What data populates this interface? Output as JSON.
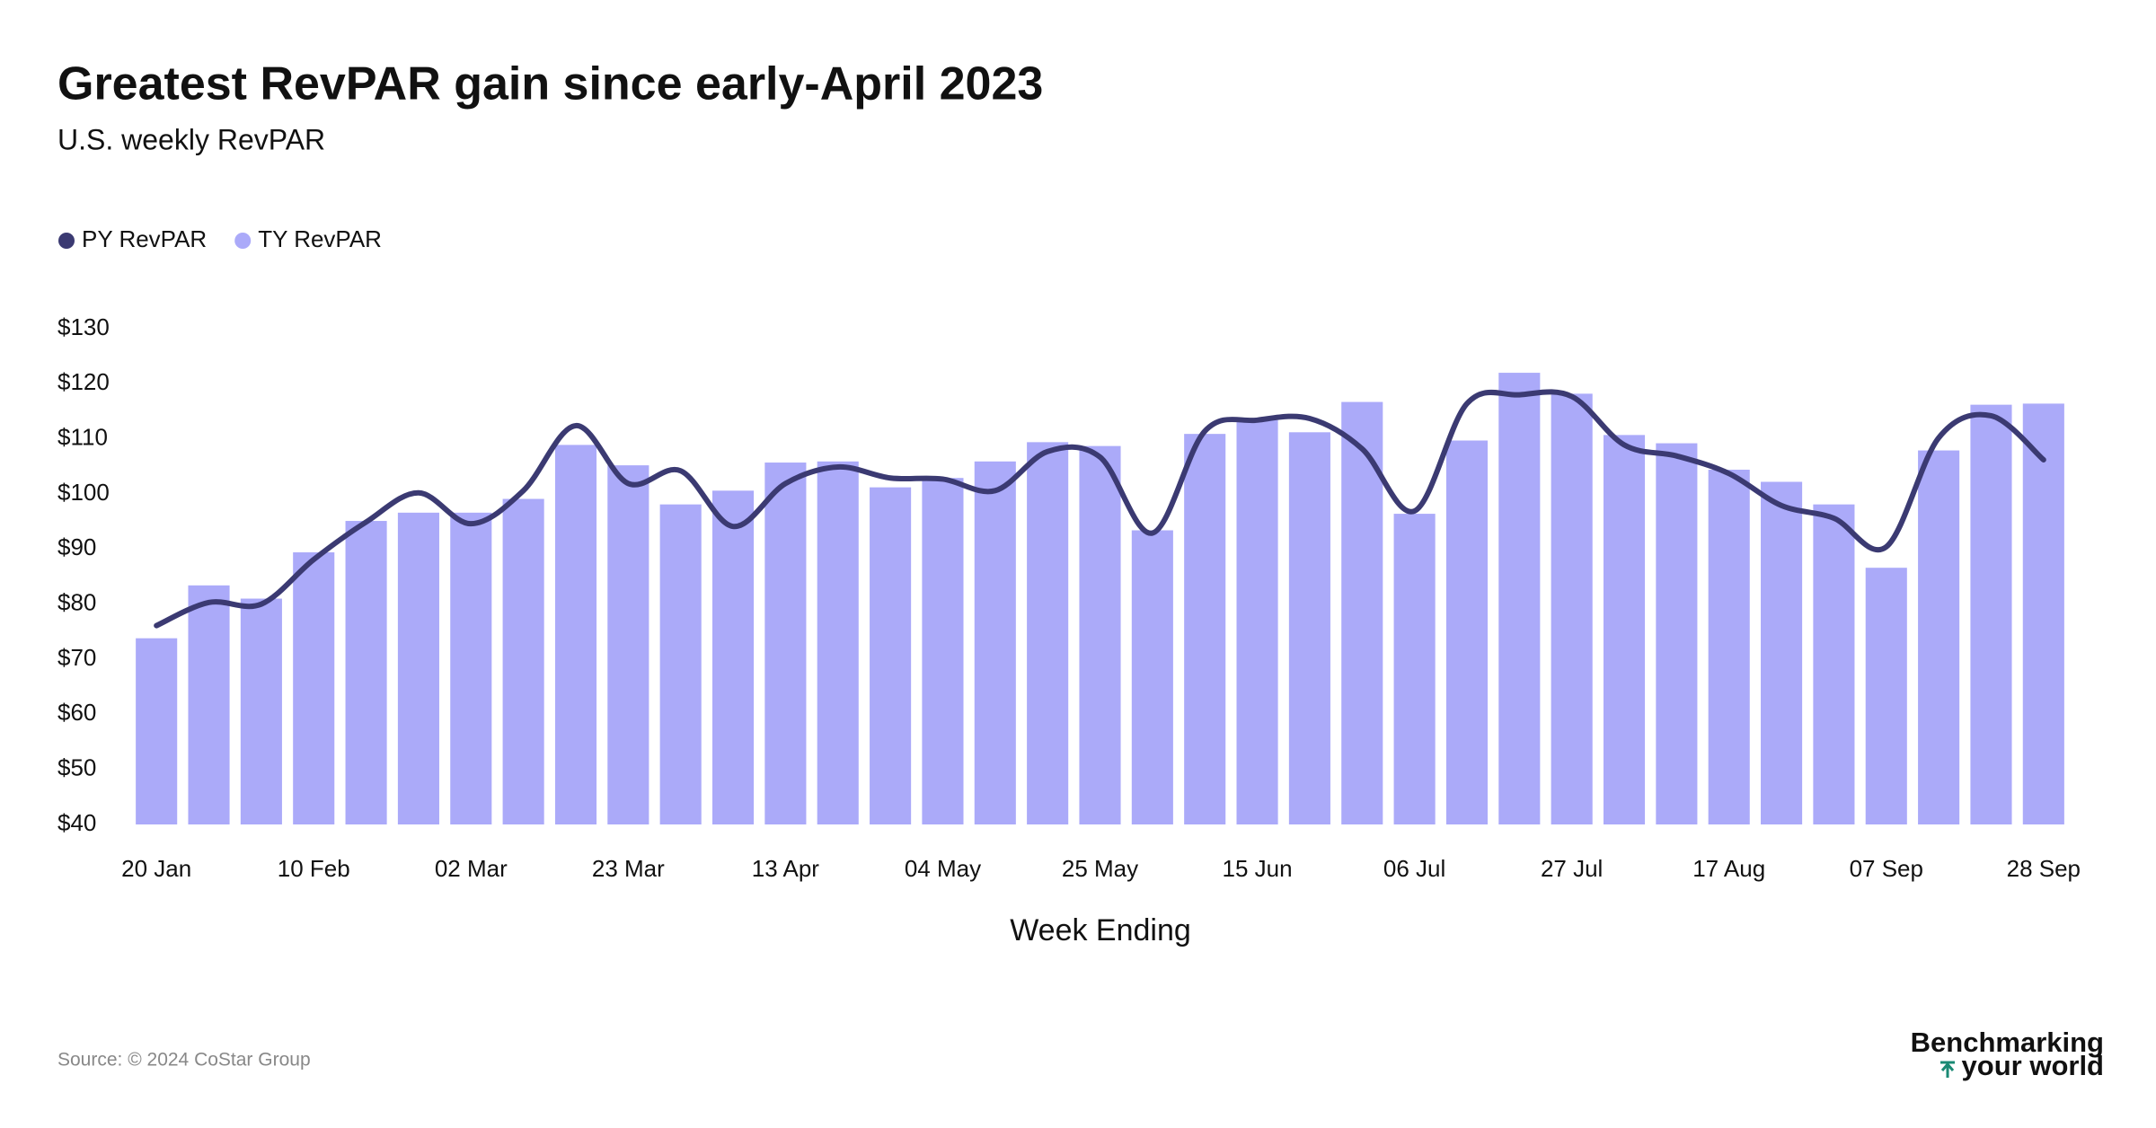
{
  "chart_data": {
    "type": "bar",
    "title": "Greatest RevPAR gain since early-April 2023",
    "subtitle": "U.S. weekly RevPAR",
    "x_label": "Week Ending",
    "source": "Source: © 2024 CoStar Group",
    "logo": [
      "Benchmarking",
      "your world"
    ],
    "categories": [
      "20 Jan",
      null,
      null,
      "10 Feb",
      null,
      null,
      "02 Mar",
      null,
      null,
      "23 Mar",
      null,
      null,
      "13 Apr",
      null,
      null,
      "04 May",
      null,
      null,
      "25 May",
      null,
      null,
      "15 Jun",
      null,
      null,
      "06 Jul",
      null,
      null,
      "27 Jul",
      null,
      null,
      "17 Aug",
      null,
      null,
      "07 Sep",
      null,
      null,
      "28 Sep"
    ],
    "series": [
      {
        "name": "PY RevPAR",
        "type": "line",
        "color": "#3b3a72",
        "values": [
          76.1,
          80.3,
          80,
          88.1,
          94.9,
          100.2,
          94.6,
          100.6,
          112.4,
          101.9,
          104.2,
          94.1,
          101.9,
          104.9,
          102.9,
          102.7,
          100.6,
          107.7,
          106.7,
          92.9,
          111.4,
          113.4,
          113.7,
          108.2,
          96.9,
          116.4,
          118,
          117.7,
          108.9,
          106.9,
          103.7,
          97.9,
          95.6,
          90.4,
          110.2,
          114.2,
          106.2
        ]
      },
      {
        "name": "TY RevPAR",
        "type": "bar",
        "color": "#abaaf9",
        "values": [
          73.8,
          83.4,
          81,
          89.4,
          95.1,
          96.6,
          96.6,
          99.1,
          108.9,
          105.2,
          98.1,
          100.6,
          105.7,
          105.9,
          101.2,
          102.9,
          105.9,
          109.4,
          108.7,
          93.4,
          110.9,
          113.4,
          111.2,
          116.7,
          96.4,
          109.7,
          122,
          118.2,
          110.7,
          109.2,
          104.4,
          102.2,
          98.1,
          86.6,
          107.9,
          116.2,
          116.4
        ]
      }
    ],
    "ylim": [
      40,
      130
    ],
    "yticks": [
      {
        "value": 40,
        "label": "$40"
      },
      {
        "value": 50,
        "label": "$50"
      },
      {
        "value": 60,
        "label": "$60"
      },
      {
        "value": 70,
        "label": "$70"
      },
      {
        "value": 80,
        "label": "$80"
      },
      {
        "value": 90,
        "label": "$90"
      },
      {
        "value": 100,
        "label": "$100"
      },
      {
        "value": 110,
        "label": "$110"
      },
      {
        "value": 120,
        "label": "$120"
      },
      {
        "value": 130,
        "label": "$130"
      }
    ],
    "grid": false
  }
}
